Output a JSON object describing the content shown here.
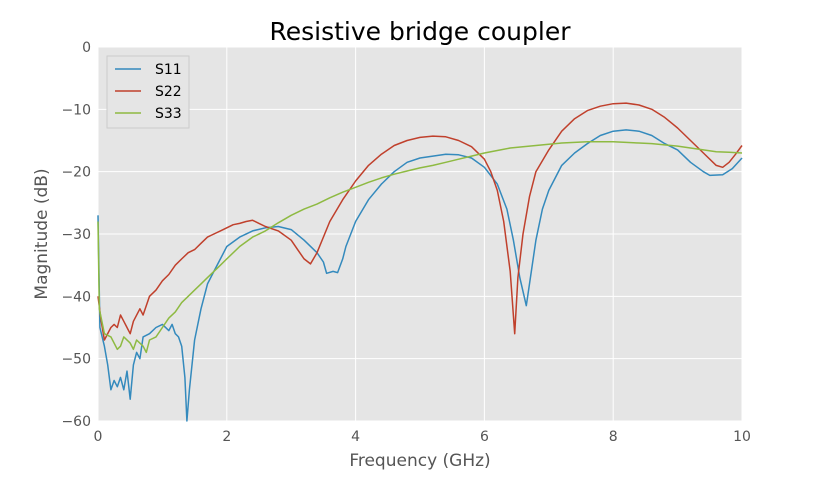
{
  "chart_data": {
    "type": "line",
    "title": "Resistive bridge coupler",
    "xlabel": "Frequency (GHz)",
    "ylabel": "Magnitude (dB)",
    "xlim": [
      0,
      10
    ],
    "ylim": [
      -60,
      0
    ],
    "xticks": [
      0,
      2,
      4,
      6,
      8,
      10
    ],
    "xtick_labels": [
      "0",
      "2",
      "4",
      "6",
      "8",
      "10"
    ],
    "yticks": [
      0,
      -10,
      -20,
      -30,
      -40,
      -50,
      -60
    ],
    "ytick_labels": [
      "0",
      "−10",
      "−20",
      "−30",
      "−40",
      "−50",
      "−60"
    ],
    "grid": true,
    "legend_position": "top-left",
    "series": [
      {
        "name": "S11",
        "color": "#348ABD",
        "points": [
          [
            0,
            -27
          ],
          [
            0.03,
            -45
          ],
          [
            0.1,
            -48
          ],
          [
            0.15,
            -51
          ],
          [
            0.2,
            -55
          ],
          [
            0.25,
            -53.5
          ],
          [
            0.3,
            -54.5
          ],
          [
            0.35,
            -53
          ],
          [
            0.4,
            -55
          ],
          [
            0.45,
            -52
          ],
          [
            0.5,
            -56.5
          ],
          [
            0.55,
            -51
          ],
          [
            0.6,
            -49
          ],
          [
            0.65,
            -50
          ],
          [
            0.7,
            -46.5
          ],
          [
            0.8,
            -46
          ],
          [
            0.9,
            -45
          ],
          [
            1.0,
            -44.5
          ],
          [
            1.1,
            -45.5
          ],
          [
            1.15,
            -44.5
          ],
          [
            1.2,
            -46
          ],
          [
            1.25,
            -46.5
          ],
          [
            1.3,
            -48
          ],
          [
            1.35,
            -53
          ],
          [
            1.38,
            -60
          ],
          [
            1.42,
            -55
          ],
          [
            1.5,
            -47
          ],
          [
            1.6,
            -42
          ],
          [
            1.7,
            -38
          ],
          [
            1.8,
            -36
          ],
          [
            1.9,
            -34
          ],
          [
            2.0,
            -32
          ],
          [
            2.2,
            -30.5
          ],
          [
            2.4,
            -29.5
          ],
          [
            2.6,
            -29
          ],
          [
            2.8,
            -28.8
          ],
          [
            3.0,
            -29.3
          ],
          [
            3.2,
            -31
          ],
          [
            3.4,
            -33
          ],
          [
            3.5,
            -34.5
          ],
          [
            3.55,
            -36.3
          ],
          [
            3.65,
            -36
          ],
          [
            3.72,
            -36.2
          ],
          [
            3.8,
            -34
          ],
          [
            3.85,
            -32
          ],
          [
            4.0,
            -28
          ],
          [
            4.2,
            -24.5
          ],
          [
            4.4,
            -22
          ],
          [
            4.6,
            -20
          ],
          [
            4.8,
            -18.5
          ],
          [
            5.0,
            -17.8
          ],
          [
            5.2,
            -17.5
          ],
          [
            5.4,
            -17.2
          ],
          [
            5.6,
            -17.3
          ],
          [
            5.8,
            -17.8
          ],
          [
            6.0,
            -19.3
          ],
          [
            6.2,
            -22
          ],
          [
            6.35,
            -26
          ],
          [
            6.45,
            -31
          ],
          [
            6.55,
            -37
          ],
          [
            6.65,
            -41.5
          ],
          [
            6.7,
            -38
          ],
          [
            6.8,
            -31
          ],
          [
            6.9,
            -26
          ],
          [
            7.0,
            -23
          ],
          [
            7.2,
            -19
          ],
          [
            7.4,
            -17
          ],
          [
            7.6,
            -15.5
          ],
          [
            7.8,
            -14.2
          ],
          [
            8.0,
            -13.5
          ],
          [
            8.2,
            -13.3
          ],
          [
            8.4,
            -13.5
          ],
          [
            8.6,
            -14.2
          ],
          [
            8.8,
            -15.5
          ],
          [
            9.0,
            -16.5
          ],
          [
            9.2,
            -18.5
          ],
          [
            9.4,
            -20
          ],
          [
            9.5,
            -20.6
          ],
          [
            9.7,
            -20.5
          ],
          [
            9.85,
            -19.5
          ],
          [
            10,
            -17.8
          ]
        ]
      },
      {
        "name": "S22",
        "color": "#C0402C",
        "points": [
          [
            0,
            -40
          ],
          [
            0.05,
            -44
          ],
          [
            0.1,
            -47
          ],
          [
            0.2,
            -45
          ],
          [
            0.25,
            -44.5
          ],
          [
            0.3,
            -45
          ],
          [
            0.35,
            -43
          ],
          [
            0.4,
            -44
          ],
          [
            0.5,
            -46
          ],
          [
            0.55,
            -44
          ],
          [
            0.65,
            -42
          ],
          [
            0.7,
            -43
          ],
          [
            0.8,
            -40
          ],
          [
            0.9,
            -39
          ],
          [
            1.0,
            -37.5
          ],
          [
            1.1,
            -36.5
          ],
          [
            1.2,
            -35
          ],
          [
            1.3,
            -34
          ],
          [
            1.4,
            -33
          ],
          [
            1.5,
            -32.5
          ],
          [
            1.6,
            -31.5
          ],
          [
            1.7,
            -30.5
          ],
          [
            1.8,
            -30
          ],
          [
            1.9,
            -29.5
          ],
          [
            2.0,
            -29
          ],
          [
            2.1,
            -28.5
          ],
          [
            2.2,
            -28.3
          ],
          [
            2.3,
            -28
          ],
          [
            2.4,
            -27.8
          ],
          [
            2.5,
            -28.3
          ],
          [
            2.6,
            -28.8
          ],
          [
            2.8,
            -29.5
          ],
          [
            3.0,
            -31
          ],
          [
            3.1,
            -32.5
          ],
          [
            3.2,
            -34
          ],
          [
            3.3,
            -34.8
          ],
          [
            3.4,
            -33
          ],
          [
            3.5,
            -30.5
          ],
          [
            3.6,
            -28
          ],
          [
            3.8,
            -24.5
          ],
          [
            4.0,
            -21.5
          ],
          [
            4.2,
            -19
          ],
          [
            4.4,
            -17.2
          ],
          [
            4.6,
            -15.8
          ],
          [
            4.8,
            -15
          ],
          [
            5.0,
            -14.5
          ],
          [
            5.2,
            -14.3
          ],
          [
            5.4,
            -14.4
          ],
          [
            5.6,
            -15
          ],
          [
            5.8,
            -16
          ],
          [
            6.0,
            -18
          ],
          [
            6.1,
            -20
          ],
          [
            6.2,
            -23
          ],
          [
            6.3,
            -28
          ],
          [
            6.4,
            -36
          ],
          [
            6.47,
            -46
          ],
          [
            6.52,
            -37
          ],
          [
            6.6,
            -30
          ],
          [
            6.7,
            -24
          ],
          [
            6.8,
            -20
          ],
          [
            7.0,
            -16.5
          ],
          [
            7.2,
            -13.5
          ],
          [
            7.4,
            -11.5
          ],
          [
            7.6,
            -10.2
          ],
          [
            7.8,
            -9.5
          ],
          [
            8.0,
            -9.1
          ],
          [
            8.2,
            -9.0
          ],
          [
            8.4,
            -9.3
          ],
          [
            8.6,
            -10
          ],
          [
            8.8,
            -11.3
          ],
          [
            9.0,
            -13
          ],
          [
            9.2,
            -15
          ],
          [
            9.4,
            -17
          ],
          [
            9.6,
            -19
          ],
          [
            9.7,
            -19.3
          ],
          [
            9.8,
            -18.5
          ],
          [
            9.9,
            -17.2
          ],
          [
            10,
            -15.8
          ]
        ]
      },
      {
        "name": "S33",
        "color": "#8EBA42",
        "points": [
          [
            0,
            -28
          ],
          [
            0.02,
            -42
          ],
          [
            0.1,
            -46
          ],
          [
            0.2,
            -46.5
          ],
          [
            0.3,
            -48.5
          ],
          [
            0.35,
            -48
          ],
          [
            0.4,
            -46.5
          ],
          [
            0.5,
            -47.5
          ],
          [
            0.55,
            -48.5
          ],
          [
            0.6,
            -47
          ],
          [
            0.7,
            -48
          ],
          [
            0.75,
            -49
          ],
          [
            0.8,
            -47
          ],
          [
            0.9,
            -46.5
          ],
          [
            1.0,
            -45
          ],
          [
            1.1,
            -43.5
          ],
          [
            1.2,
            -42.5
          ],
          [
            1.3,
            -41
          ],
          [
            1.4,
            -40
          ],
          [
            1.5,
            -39
          ],
          [
            1.6,
            -38
          ],
          [
            1.7,
            -37
          ],
          [
            1.8,
            -36
          ],
          [
            1.9,
            -35
          ],
          [
            2.0,
            -34
          ],
          [
            2.2,
            -32
          ],
          [
            2.4,
            -30.5
          ],
          [
            2.6,
            -29.5
          ],
          [
            2.8,
            -28.2
          ],
          [
            3.0,
            -27
          ],
          [
            3.2,
            -26
          ],
          [
            3.4,
            -25.2
          ],
          [
            3.6,
            -24.2
          ],
          [
            3.8,
            -23.3
          ],
          [
            4.0,
            -22.5
          ],
          [
            4.2,
            -21.7
          ],
          [
            4.4,
            -21
          ],
          [
            4.6,
            -20.4
          ],
          [
            4.8,
            -19.9
          ],
          [
            5.0,
            -19.4
          ],
          [
            5.2,
            -19
          ],
          [
            5.4,
            -18.5
          ],
          [
            5.6,
            -18
          ],
          [
            5.8,
            -17.5
          ],
          [
            6.0,
            -17
          ],
          [
            6.2,
            -16.6
          ],
          [
            6.4,
            -16.2
          ],
          [
            6.6,
            -16
          ],
          [
            6.8,
            -15.8
          ],
          [
            7.0,
            -15.6
          ],
          [
            7.2,
            -15.4
          ],
          [
            7.4,
            -15.3
          ],
          [
            7.6,
            -15.2
          ],
          [
            7.8,
            -15.2
          ],
          [
            8.0,
            -15.2
          ],
          [
            8.2,
            -15.3
          ],
          [
            8.4,
            -15.4
          ],
          [
            8.6,
            -15.5
          ],
          [
            8.8,
            -15.7
          ],
          [
            9.0,
            -15.9
          ],
          [
            9.2,
            -16.2
          ],
          [
            9.4,
            -16.5
          ],
          [
            9.6,
            -16.8
          ],
          [
            9.8,
            -16.9
          ],
          [
            10,
            -17
          ]
        ]
      }
    ]
  }
}
